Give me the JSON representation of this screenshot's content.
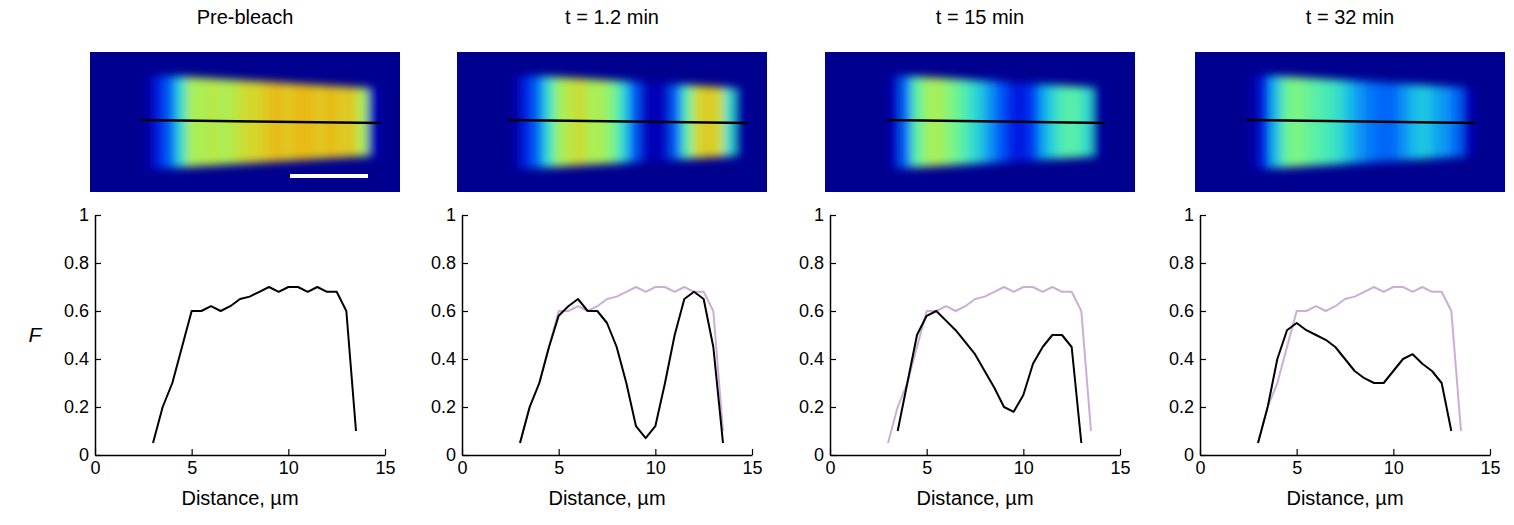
{
  "chart_data": [
    {
      "type": "line",
      "title": "Pre-bleach",
      "x_label": "Distance, µm",
      "y_label": "F",
      "x": [
        2.5,
        3,
        3.5,
        4,
        4.5,
        5,
        5.5,
        6,
        6.5,
        7,
        7.5,
        8,
        8.5,
        9,
        9.5,
        10,
        10.5,
        11,
        11.5,
        12,
        12.5,
        13,
        13.5,
        14
      ],
      "series": [
        {
          "color": "#000000",
          "values": [
            null,
            0.05,
            0.2,
            0.3,
            0.45,
            0.6,
            0.6,
            0.62,
            0.6,
            0.62,
            0.65,
            0.66,
            0.68,
            0.7,
            0.68,
            0.7,
            0.7,
            0.68,
            0.7,
            0.68,
            0.68,
            0.6,
            0.1,
            null
          ]
        }
      ],
      "xlim": [
        0,
        15
      ],
      "xticks": [
        0,
        5,
        10,
        15
      ],
      "ylim": [
        0,
        1
      ],
      "yticks": [
        0,
        0.2,
        0.4,
        0.6,
        0.8,
        1
      ]
    },
    {
      "type": "line",
      "title": "t = 1.2 min",
      "x_label": "Distance, µm",
      "x": [
        2.5,
        3,
        3.5,
        4,
        4.5,
        5,
        5.5,
        6,
        6.5,
        7,
        7.5,
        8,
        8.5,
        9,
        9.5,
        10,
        10.5,
        11,
        11.5,
        12,
        12.5,
        13,
        13.5,
        14
      ],
      "series": [
        {
          "color": "#cbaed8",
          "values": [
            null,
            0.05,
            0.2,
            0.3,
            0.45,
            0.6,
            0.6,
            0.62,
            0.6,
            0.62,
            0.65,
            0.66,
            0.68,
            0.7,
            0.68,
            0.7,
            0.7,
            0.68,
            0.7,
            0.68,
            0.68,
            0.6,
            0.1,
            null
          ]
        },
        {
          "color": "#000000",
          "values": [
            null,
            0.05,
            0.2,
            0.3,
            0.45,
            0.58,
            0.62,
            0.65,
            0.6,
            0.6,
            0.55,
            0.45,
            0.3,
            0.12,
            0.07,
            0.12,
            0.3,
            0.5,
            0.65,
            0.68,
            0.65,
            0.45,
            0.05,
            null
          ]
        }
      ],
      "xlim": [
        0,
        15
      ],
      "xticks": [
        0,
        5,
        10,
        15
      ],
      "ylim": [
        0,
        1
      ],
      "yticks": [
        0,
        0.2,
        0.4,
        0.6,
        0.8,
        1
      ]
    },
    {
      "type": "line",
      "title": "t = 15 min",
      "x_label": "Distance, µm",
      "x": [
        2.5,
        3,
        3.5,
        4,
        4.5,
        5,
        5.5,
        6,
        6.5,
        7,
        7.5,
        8,
        8.5,
        9,
        9.5,
        10,
        10.5,
        11,
        11.5,
        12,
        12.5,
        13,
        13.5,
        14
      ],
      "series": [
        {
          "color": "#cbaed8",
          "values": [
            null,
            0.05,
            0.2,
            0.3,
            0.45,
            0.6,
            0.6,
            0.62,
            0.6,
            0.62,
            0.65,
            0.66,
            0.68,
            0.7,
            0.68,
            0.7,
            0.7,
            0.68,
            0.7,
            0.68,
            0.68,
            0.6,
            0.1,
            null
          ]
        },
        {
          "color": "#000000",
          "values": [
            null,
            null,
            0.1,
            0.3,
            0.5,
            0.58,
            0.6,
            0.56,
            0.52,
            0.47,
            0.42,
            0.35,
            0.28,
            0.2,
            0.18,
            0.25,
            0.38,
            0.45,
            0.5,
            0.5,
            0.45,
            0.05,
            null,
            null
          ]
        }
      ],
      "xlim": [
        0,
        15
      ],
      "xticks": [
        0,
        5,
        10,
        15
      ],
      "ylim": [
        0,
        1
      ],
      "yticks": [
        0,
        0.2,
        0.4,
        0.6,
        0.8,
        1
      ]
    },
    {
      "type": "line",
      "title": "t = 32 min",
      "x_label": "Distance, µm",
      "x": [
        2.5,
        3,
        3.5,
        4,
        4.5,
        5,
        5.5,
        6,
        6.5,
        7,
        7.5,
        8,
        8.5,
        9,
        9.5,
        10,
        10.5,
        11,
        11.5,
        12,
        12.5,
        13,
        13.5,
        14
      ],
      "series": [
        {
          "color": "#cbaed8",
          "values": [
            null,
            0.05,
            0.2,
            0.3,
            0.45,
            0.6,
            0.6,
            0.62,
            0.6,
            0.62,
            0.65,
            0.66,
            0.68,
            0.7,
            0.68,
            0.7,
            0.7,
            0.68,
            0.7,
            0.68,
            0.68,
            0.6,
            0.1,
            null
          ]
        },
        {
          "color": "#000000",
          "values": [
            null,
            0.05,
            0.2,
            0.4,
            0.52,
            0.55,
            0.52,
            0.5,
            0.48,
            0.45,
            0.4,
            0.35,
            0.32,
            0.3,
            0.3,
            0.35,
            0.4,
            0.42,
            0.38,
            0.35,
            0.3,
            0.1,
            null,
            null
          ]
        }
      ],
      "xlim": [
        0,
        15
      ],
      "xticks": [
        0,
        5,
        10,
        15
      ],
      "ylim": [
        0,
        1
      ],
      "yticks": [
        0,
        0.2,
        0.4,
        0.6,
        0.8,
        1
      ]
    }
  ]
}
